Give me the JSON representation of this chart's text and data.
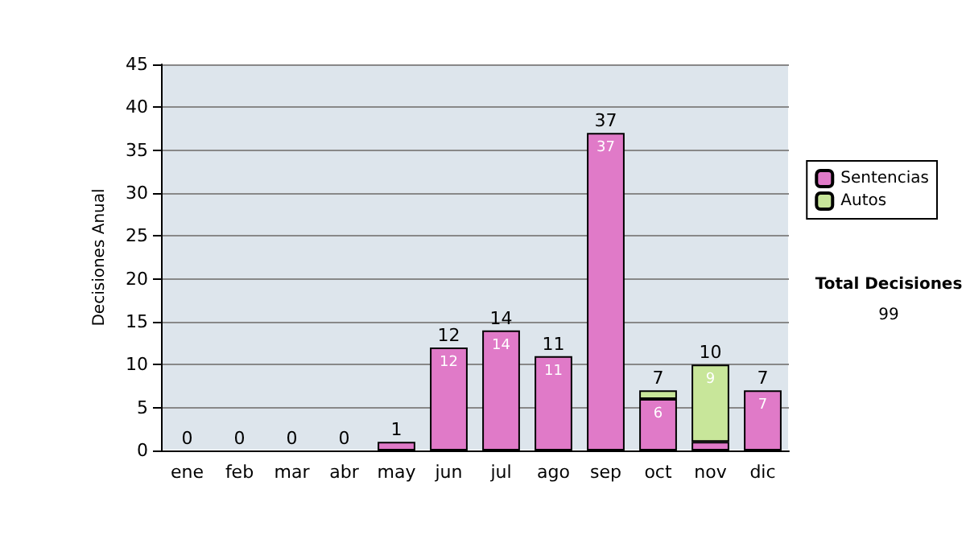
{
  "chart_data": {
    "type": "bar",
    "ylabel": "Decisiones Anual",
    "categories": [
      "ene",
      "feb",
      "mar",
      "abr",
      "may",
      "jun",
      "jul",
      "ago",
      "sep",
      "oct",
      "nov",
      "dic"
    ],
    "series": [
      {
        "name": "Sentencias",
        "color": "#e07ac8",
        "values": [
          0,
          0,
          0,
          0,
          1,
          12,
          14,
          11,
          37,
          6,
          1,
          7
        ],
        "value_labels": [
          null,
          null,
          null,
          null,
          null,
          "12",
          "14",
          "11",
          "37",
          "6",
          null,
          "7"
        ]
      },
      {
        "name": "Autos",
        "color": "#c8e69a",
        "values": [
          0,
          0,
          0,
          0,
          0,
          0,
          0,
          0,
          0,
          1,
          9,
          0
        ],
        "value_labels": [
          null,
          null,
          null,
          null,
          null,
          null,
          null,
          null,
          null,
          null,
          "9",
          null
        ]
      }
    ],
    "stacked": true,
    "totals": [
      "0",
      "0",
      "0",
      "0",
      "1",
      "12",
      "14",
      "11",
      "37",
      "7",
      "10",
      "7"
    ],
    "ylim": [
      0,
      45
    ],
    "yticks": [
      0,
      5,
      10,
      15,
      20,
      25,
      30,
      35,
      40,
      45
    ],
    "grid": "y",
    "legend": "right",
    "annotations": [
      "Total Decisiones",
      "99"
    ]
  }
}
